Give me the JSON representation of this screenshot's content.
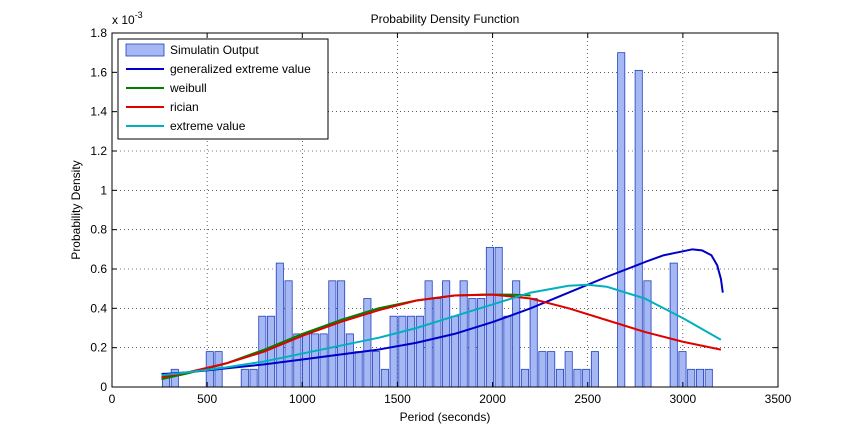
{
  "chart_data": {
    "type": "bar",
    "title": "Probability Density Function",
    "xlabel": "Period (seconds)",
    "ylabel": "Probability Density",
    "y_exponent_label": "x 10",
    "y_exponent_power": "-3",
    "xlim": [
      0,
      3500
    ],
    "ylim": [
      0,
      1.8
    ],
    "grid": true,
    "legend_position": "top-left",
    "x_ticks": [
      0,
      500,
      1000,
      1500,
      2000,
      2500,
      3000,
      3500
    ],
    "x_tick_labels": [
      "0",
      "500",
      "1000",
      "1500",
      "2000",
      "2500",
      "3000",
      "3500"
    ],
    "y_ticks": [
      0,
      0.2,
      0.4,
      0.6,
      0.8,
      1.0,
      1.2,
      1.4,
      1.6,
      1.8
    ],
    "y_tick_labels": [
      "0",
      "0.2",
      "0.4",
      "0.6",
      "0.8",
      "1",
      "1.2",
      "1.4",
      "1.6",
      "1.8"
    ],
    "bar_color": "#a6b8f4",
    "bar_edge_color": "#1f3fbf",
    "bin_width": 46,
    "histogram": {
      "name": "Simulatin Output",
      "x": [
        284,
        330,
        514,
        560,
        698,
        744,
        790,
        836,
        882,
        928,
        974,
        1020,
        1066,
        1112,
        1158,
        1204,
        1250,
        1296,
        1342,
        1388,
        1434,
        1480,
        1526,
        1572,
        1618,
        1664,
        1710,
        1756,
        1802,
        1848,
        1894,
        1940,
        1986,
        2032,
        2078,
        2124,
        2170,
        2216,
        2262,
        2308,
        2354,
        2400,
        2446,
        2492,
        2538,
        2676,
        2768,
        2814,
        2952,
        2998,
        3044,
        3090,
        3136
      ],
      "values": [
        0.07,
        0.09,
        0.18,
        0.18,
        0.09,
        0.09,
        0.36,
        0.36,
        0.63,
        0.54,
        0.27,
        0.27,
        0.27,
        0.27,
        0.54,
        0.54,
        0.27,
        0.18,
        0.45,
        0.18,
        0.09,
        0.36,
        0.36,
        0.36,
        0.36,
        0.54,
        0.45,
        0.54,
        0.36,
        0.54,
        0.45,
        0.45,
        0.71,
        0.71,
        0.36,
        0.54,
        0.09,
        0.45,
        0.18,
        0.18,
        0.09,
        0.18,
        0.09,
        0.09,
        0.18,
        1.7,
        1.61,
        0.54,
        0.63,
        0.18,
        0.09,
        0.09,
        0.09
      ]
    },
    "series": [
      {
        "name": "generalized extreme value",
        "color": "#0000c8",
        "x": [
          260,
          400,
          600,
          800,
          1000,
          1200,
          1400,
          1600,
          1800,
          2000,
          2200,
          2400,
          2600,
          2800,
          2900,
          3000,
          3050,
          3100,
          3150,
          3180,
          3200,
          3210
        ],
        "y": [
          0.065,
          0.075,
          0.095,
          0.115,
          0.14,
          0.165,
          0.19,
          0.225,
          0.27,
          0.33,
          0.4,
          0.48,
          0.56,
          0.635,
          0.67,
          0.69,
          0.7,
          0.695,
          0.67,
          0.62,
          0.55,
          0.48
        ]
      },
      {
        "name": "weibull",
        "color": "#008000",
        "x": [
          260,
          400,
          600,
          800,
          1000,
          1200,
          1400,
          1600,
          1800,
          1950,
          2100,
          2200
        ],
        "y": [
          0.04,
          0.07,
          0.12,
          0.19,
          0.27,
          0.34,
          0.4,
          0.44,
          0.465,
          0.47,
          0.47,
          0.465
        ]
      },
      {
        "name": "rician",
        "color": "#e00000",
        "x": [
          260,
          400,
          600,
          800,
          1000,
          1200,
          1400,
          1600,
          1800,
          2000,
          2200,
          2400,
          2600,
          2800,
          3000,
          3200
        ],
        "y": [
          0.05,
          0.075,
          0.12,
          0.18,
          0.26,
          0.33,
          0.39,
          0.44,
          0.465,
          0.47,
          0.45,
          0.4,
          0.34,
          0.28,
          0.23,
          0.19
        ]
      },
      {
        "name": "extreme value",
        "color": "#00b0c0",
        "x": [
          260,
          400,
          600,
          800,
          1000,
          1200,
          1400,
          1600,
          1800,
          2000,
          2200,
          2400,
          2500,
          2600,
          2800,
          3000,
          3200
        ],
        "y": [
          0.06,
          0.075,
          0.1,
          0.13,
          0.17,
          0.21,
          0.25,
          0.3,
          0.36,
          0.42,
          0.48,
          0.515,
          0.52,
          0.51,
          0.45,
          0.35,
          0.24
        ]
      }
    ]
  }
}
